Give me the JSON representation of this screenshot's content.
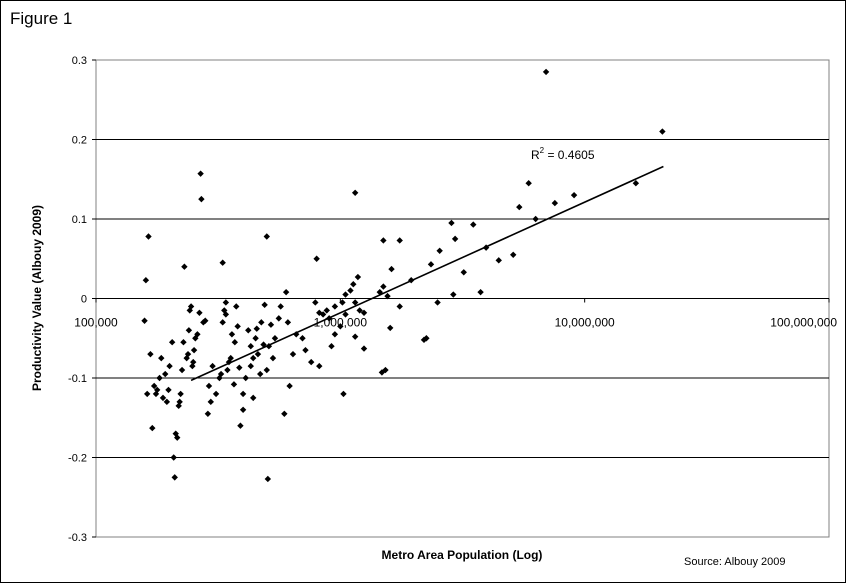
{
  "figure_label": "Figure 1",
  "source_note": "Source: Albouy 2009",
  "chart_data": {
    "type": "scatter",
    "title": "",
    "xlabel": "Metro Area Population (Log)",
    "ylabel": "Productivity Value (Albouy 2009)",
    "xscale": "log",
    "xlim": [
      100000,
      100000000
    ],
    "ylim": [
      -0.3,
      0.3
    ],
    "x_ticks": [
      100000,
      1000000,
      10000000,
      100000000
    ],
    "x_tick_labels": [
      "100,000",
      "1,000,000",
      "10,000,000",
      "100,000,000"
    ],
    "y_ticks": [
      -0.3,
      -0.2,
      -0.1,
      0,
      0.1,
      0.2,
      0.3
    ],
    "y_tick_labels": [
      "-0.3",
      "-0.2",
      "-0.1",
      "0",
      "0.1",
      "0.2",
      "0.3"
    ],
    "grid": "horizontal",
    "trendline": {
      "type": "logarithmic",
      "x": [
        245000,
        21000000
      ],
      "y": [
        -0.103,
        0.166
      ],
      "annotation_base": "R",
      "annotation_sup": "2",
      "annotation_rest": " = 0.4605"
    },
    "points": [
      [
        20800000,
        0.21
      ],
      [
        6950000,
        0.285
      ],
      [
        16200000,
        0.145
      ],
      [
        9050000,
        0.13
      ],
      [
        7550000,
        0.12
      ],
      [
        5900000,
        0.145
      ],
      [
        6300000,
        0.1
      ],
      [
        5400000,
        0.115
      ],
      [
        3500000,
        0.093
      ],
      [
        5100000,
        0.055
      ],
      [
        4450000,
        0.048
      ],
      [
        3750000,
        0.008
      ],
      [
        3950000,
        0.064
      ],
      [
        2850000,
        0.095
      ],
      [
        2950000,
        0.075
      ],
      [
        3200000,
        0.033
      ],
      [
        2900000,
        0.005
      ],
      [
        2550000,
        0.06
      ],
      [
        2350000,
        0.043
      ],
      [
        2500000,
        -0.005
      ],
      [
        2250000,
        -0.05
      ],
      [
        2200000,
        -0.052
      ],
      [
        1950000,
        0.023
      ],
      [
        1750000,
        0.073
      ],
      [
        1750000,
        -0.01
      ],
      [
        1620000,
        0.037
      ],
      [
        1560000,
        0.003
      ],
      [
        1600000,
        -0.037
      ],
      [
        1500000,
        0.073
      ],
      [
        1500000,
        0.015
      ],
      [
        1450000,
        0.008
      ],
      [
        1530000,
        -0.09
      ],
      [
        1480000,
        -0.093
      ],
      [
        1150000,
        0.133
      ],
      [
        1180000,
        0.027
      ],
      [
        1250000,
        -0.018
      ],
      [
        1130000,
        0.018
      ],
      [
        1100000,
        0.01
      ],
      [
        1050000,
        0.005
      ],
      [
        1150000,
        -0.005
      ],
      [
        1020000,
        -0.005
      ],
      [
        1200000,
        -0.015
      ],
      [
        1250000,
        -0.063
      ],
      [
        1150000,
        -0.048
      ],
      [
        1050000,
        -0.02
      ],
      [
        1000000,
        -0.035
      ],
      [
        950000,
        -0.01
      ],
      [
        900000,
        -0.025
      ],
      [
        950000,
        -0.045
      ],
      [
        920000,
        -0.06
      ],
      [
        1030000,
        -0.12
      ],
      [
        880000,
        -0.015
      ],
      [
        850000,
        -0.02
      ],
      [
        820000,
        -0.018
      ],
      [
        790000,
        -0.005
      ],
      [
        800000,
        0.05
      ],
      [
        820000,
        -0.085
      ],
      [
        760000,
        -0.08
      ],
      [
        660000,
        -0.045
      ],
      [
        640000,
        -0.07
      ],
      [
        620000,
        -0.11
      ],
      [
        600000,
        0.008
      ],
      [
        570000,
        -0.01
      ],
      [
        590000,
        -0.145
      ],
      [
        560000,
        -0.025
      ],
      [
        540000,
        -0.05
      ],
      [
        520000,
        -0.033
      ],
      [
        510000,
        -0.06
      ],
      [
        500000,
        -0.09
      ],
      [
        490000,
        -0.008
      ],
      [
        500000,
        0.078
      ],
      [
        505000,
        -0.227
      ],
      [
        475000,
        -0.03
      ],
      [
        470000,
        -0.095
      ],
      [
        460000,
        -0.07
      ],
      [
        450000,
        -0.05
      ],
      [
        440000,
        -0.075
      ],
      [
        430000,
        -0.06
      ],
      [
        440000,
        -0.125
      ],
      [
        420000,
        -0.04
      ],
      [
        410000,
        -0.1
      ],
      [
        400000,
        -0.12
      ],
      [
        390000,
        -0.16
      ],
      [
        400000,
        -0.14
      ],
      [
        375000,
        -0.01
      ],
      [
        380000,
        -0.035
      ],
      [
        370000,
        -0.055
      ],
      [
        360000,
        -0.045
      ],
      [
        350000,
        -0.08
      ],
      [
        345000,
        -0.09
      ],
      [
        340000,
        -0.02
      ],
      [
        330000,
        0.045
      ],
      [
        340000,
        -0.005
      ],
      [
        335000,
        -0.015
      ],
      [
        330000,
        -0.03
      ],
      [
        325000,
        -0.095
      ],
      [
        320000,
        -0.1
      ],
      [
        310000,
        -0.12
      ],
      [
        300000,
        -0.085
      ],
      [
        295000,
        -0.13
      ],
      [
        290000,
        -0.11
      ],
      [
        287000,
        -0.145
      ],
      [
        280000,
        -0.028
      ],
      [
        275000,
        -0.03
      ],
      [
        270000,
        0.125
      ],
      [
        268000,
        0.157
      ],
      [
        265000,
        -0.018
      ],
      [
        260000,
        -0.045
      ],
      [
        255000,
        -0.05
      ],
      [
        252000,
        -0.065
      ],
      [
        250000,
        -0.08
      ],
      [
        248000,
        -0.085
      ],
      [
        245000,
        -0.01
      ],
      [
        242000,
        -0.015
      ],
      [
        240000,
        -0.04
      ],
      [
        238000,
        -0.07
      ],
      [
        235000,
        -0.075
      ],
      [
        230000,
        0.04
      ],
      [
        228000,
        -0.055
      ],
      [
        225000,
        -0.09
      ],
      [
        222000,
        -0.12
      ],
      [
        220000,
        -0.13
      ],
      [
        218000,
        -0.135
      ],
      [
        215000,
        -0.175
      ],
      [
        212000,
        -0.17
      ],
      [
        210000,
        -0.225
      ],
      [
        208000,
        -0.2
      ],
      [
        205000,
        -0.055
      ],
      [
        200000,
        -0.085
      ],
      [
        198000,
        -0.115
      ],
      [
        195000,
        -0.13
      ],
      [
        192000,
        -0.095
      ],
      [
        188000,
        -0.125
      ],
      [
        185000,
        -0.075
      ],
      [
        182000,
        -0.1
      ],
      [
        178000,
        -0.115
      ],
      [
        176000,
        -0.12
      ],
      [
        173000,
        -0.11
      ],
      [
        170000,
        -0.163
      ],
      [
        167000,
        -0.07
      ],
      [
        164000,
        0.078
      ],
      [
        162000,
        -0.12
      ],
      [
        160000,
        0.023
      ],
      [
        158000,
        -0.028
      ],
      [
        356000,
        -0.075
      ],
      [
        367000,
        -0.108
      ],
      [
        386000,
        -0.087
      ],
      [
        430000,
        -0.085
      ],
      [
        455000,
        -0.038
      ],
      [
        485000,
        -0.058
      ],
      [
        530000,
        -0.075
      ],
      [
        610000,
        -0.03
      ],
      [
        700000,
        -0.05
      ],
      [
        720000,
        -0.065
      ]
    ]
  }
}
